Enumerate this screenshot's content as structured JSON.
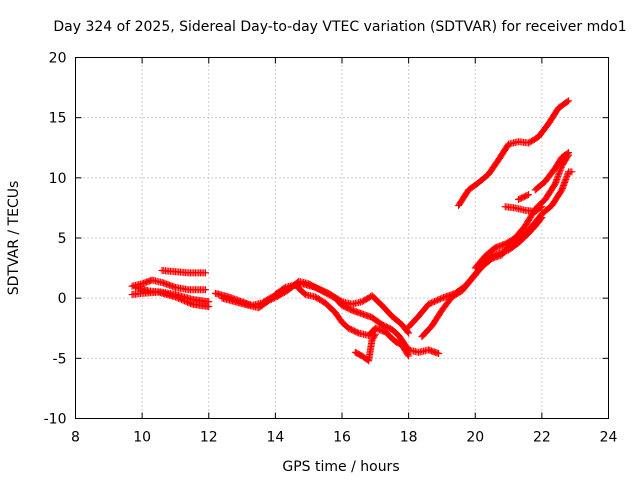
{
  "chart_data": {
    "type": "scatter",
    "title": "Day 324 of 2025, Sidereal Day-to-day VTEC variation (SDTVAR) for receiver mdo1",
    "xlabel": "GPS time / hours",
    "ylabel": "SDTVAR / TECUs",
    "xlim": [
      8,
      24
    ],
    "ylim": [
      -10,
      20
    ],
    "xticks": [
      8,
      10,
      12,
      14,
      16,
      18,
      20,
      22,
      24
    ],
    "xtick_labels": [
      "8",
      "10",
      "12",
      "14",
      "16",
      "18",
      "20",
      "22",
      "24"
    ],
    "yticks": [
      -10,
      -5,
      0,
      5,
      10,
      15,
      20
    ],
    "ytick_labels": [
      "-10",
      "-5",
      "0",
      "5",
      "10",
      "15",
      "20"
    ],
    "grid": true,
    "marker": "+",
    "color": "#ff0000",
    "series": [
      {
        "points": [
          [
            9.7,
            1.0
          ],
          [
            10.0,
            1.2
          ],
          [
            10.3,
            1.5
          ],
          [
            10.6,
            1.3
          ],
          [
            11.0,
            0.9
          ],
          [
            11.4,
            0.7
          ],
          [
            11.9,
            0.7
          ]
        ]
      },
      {
        "points": [
          [
            10.6,
            2.3
          ],
          [
            11.0,
            2.2
          ],
          [
            11.4,
            2.1
          ],
          [
            11.9,
            2.1
          ]
        ]
      },
      {
        "points": [
          [
            9.7,
            0.3
          ],
          [
            10.0,
            0.4
          ],
          [
            10.5,
            0.5
          ],
          [
            11.0,
            0.1
          ],
          [
            11.5,
            -0.5
          ],
          [
            12.0,
            -0.7
          ]
        ]
      },
      {
        "points": [
          [
            9.8,
            0.9
          ],
          [
            10.2,
            0.6
          ],
          [
            10.6,
            0.5
          ],
          [
            11.0,
            0.3
          ],
          [
            11.5,
            -0.1
          ],
          [
            12.0,
            -0.3
          ]
        ]
      },
      {
        "points": [
          [
            12.2,
            0.4
          ],
          [
            12.6,
            0.1
          ],
          [
            13.0,
            -0.3
          ],
          [
            13.3,
            -0.6
          ],
          [
            13.6,
            -0.4
          ],
          [
            13.9,
            0.1
          ],
          [
            14.2,
            0.5
          ],
          [
            14.5,
            1.0
          ],
          [
            14.8,
            1.2
          ],
          [
            15.2,
            0.9
          ],
          [
            15.6,
            0.4
          ],
          [
            16.0,
            -0.3
          ],
          [
            16.3,
            -0.5
          ],
          [
            16.6,
            -0.3
          ],
          [
            16.9,
            0.2
          ],
          [
            17.2,
            -0.6
          ],
          [
            17.5,
            -1.5
          ],
          [
            17.8,
            -2.2
          ],
          [
            18.0,
            -2.9
          ]
        ]
      },
      {
        "points": [
          [
            12.4,
            0.0
          ],
          [
            12.8,
            -0.3
          ],
          [
            13.2,
            -0.6
          ],
          [
            13.5,
            -0.8
          ],
          [
            13.8,
            -0.2
          ],
          [
            14.1,
            0.2
          ],
          [
            14.4,
            0.7
          ],
          [
            14.7,
            1.4
          ],
          [
            15.0,
            1.2
          ],
          [
            15.4,
            0.6
          ],
          [
            15.8,
            0.0
          ],
          [
            16.0,
            -0.6
          ],
          [
            16.3,
            -1.0
          ],
          [
            16.6,
            -1.3
          ],
          [
            16.9,
            -1.6
          ],
          [
            17.2,
            -2.2
          ],
          [
            17.5,
            -2.6
          ],
          [
            17.7,
            -3.1
          ],
          [
            18.0,
            -4.3
          ],
          [
            18.3,
            -4.5
          ],
          [
            18.6,
            -4.3
          ],
          [
            18.9,
            -4.6
          ]
        ]
      },
      {
        "points": [
          [
            14.0,
            0.3
          ],
          [
            14.3,
            0.9
          ],
          [
            14.6,
            1.1
          ],
          [
            14.9,
            0.3
          ],
          [
            15.2,
            0.1
          ],
          [
            15.5,
            -0.4
          ],
          [
            15.8,
            -1.2
          ],
          [
            16.0,
            -2.0
          ],
          [
            16.2,
            -2.5
          ],
          [
            16.5,
            -2.9
          ],
          [
            16.8,
            -3.1
          ],
          [
            17.0,
            -2.5
          ],
          [
            17.3,
            -2.8
          ],
          [
            17.6,
            -3.6
          ],
          [
            17.8,
            -3.9
          ],
          [
            18.0,
            -4.8
          ]
        ]
      },
      {
        "points": [
          [
            16.4,
            -4.5
          ],
          [
            16.6,
            -4.8
          ],
          [
            16.8,
            -5.2
          ],
          [
            16.9,
            -3.5
          ],
          [
            17.0,
            -3.0
          ]
        ]
      },
      {
        "points": [
          [
            18.0,
            -2.4
          ],
          [
            18.3,
            -1.5
          ],
          [
            18.6,
            -0.5
          ],
          [
            19.0,
            0.0
          ],
          [
            19.4,
            0.4
          ],
          [
            19.7,
            1.0
          ],
          [
            20.0,
            2.0
          ],
          [
            20.3,
            3.0
          ],
          [
            20.6,
            3.6
          ],
          [
            21.0,
            4.0
          ],
          [
            21.3,
            4.6
          ],
          [
            21.6,
            5.4
          ],
          [
            21.8,
            6.0
          ],
          [
            22.0,
            6.7
          ]
        ]
      },
      {
        "points": [
          [
            18.4,
            -3.2
          ],
          [
            18.7,
            -2.3
          ],
          [
            19.0,
            -1.0
          ],
          [
            19.3,
            0.1
          ],
          [
            19.6,
            0.6
          ],
          [
            19.9,
            1.6
          ],
          [
            20.2,
            2.6
          ],
          [
            20.5,
            3.3
          ],
          [
            20.8,
            3.6
          ],
          [
            21.0,
            4.3
          ],
          [
            21.3,
            5.0
          ],
          [
            21.5,
            5.3
          ],
          [
            21.8,
            6.3
          ],
          [
            22.0,
            7.0
          ],
          [
            22.3,
            7.7
          ],
          [
            22.6,
            9.0
          ],
          [
            22.8,
            10.5
          ],
          [
            22.9,
            10.5
          ]
        ]
      },
      {
        "points": [
          [
            20.0,
            2.5
          ],
          [
            20.3,
            3.5
          ],
          [
            20.6,
            4.2
          ],
          [
            20.9,
            4.5
          ],
          [
            21.2,
            5.0
          ],
          [
            21.5,
            6.0
          ],
          [
            21.8,
            7.4
          ],
          [
            22.1,
            8.2
          ],
          [
            22.4,
            9.5
          ],
          [
            22.6,
            11.0
          ],
          [
            22.8,
            11.9
          ]
        ]
      },
      {
        "points": [
          [
            20.9,
            7.6
          ],
          [
            21.2,
            7.5
          ],
          [
            21.5,
            7.3
          ],
          [
            21.8,
            7.2
          ],
          [
            22.0,
            7.6
          ]
        ]
      },
      {
        "points": [
          [
            21.3,
            8.2
          ],
          [
            21.6,
            8.6
          ]
        ]
      },
      {
        "points": [
          [
            21.8,
            9.0
          ],
          [
            22.1,
            9.7
          ],
          [
            22.4,
            10.8
          ],
          [
            22.6,
            11.7
          ],
          [
            22.8,
            12.1
          ]
        ]
      },
      {
        "points": [
          [
            19.5,
            7.7
          ],
          [
            19.8,
            9.0
          ],
          [
            20.1,
            9.6
          ],
          [
            20.4,
            10.3
          ],
          [
            20.7,
            11.5
          ],
          [
            21.0,
            12.8
          ],
          [
            21.3,
            13.0
          ],
          [
            21.6,
            12.9
          ],
          [
            21.9,
            13.4
          ],
          [
            22.2,
            14.5
          ],
          [
            22.5,
            15.8
          ],
          [
            22.8,
            16.4
          ]
        ]
      }
    ]
  }
}
